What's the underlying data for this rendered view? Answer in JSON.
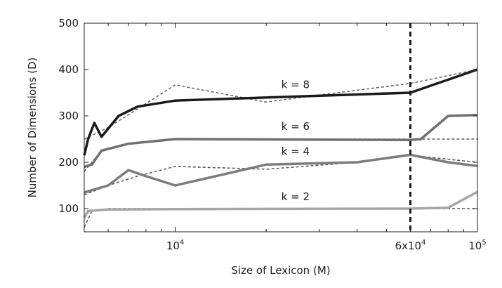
{
  "chart_data": {
    "type": "line",
    "xlabel": "Size of Lexicon (M)",
    "ylabel": "Number of Dimensions (D)",
    "x_scale": "log",
    "xlim": [
      5000,
      100000
    ],
    "ylim": [
      50,
      500
    ],
    "y_ticks": [
      100,
      200,
      300,
      400,
      500
    ],
    "x_tick_labels": [
      {
        "value": 10000,
        "base": "10",
        "exp": "4"
      },
      {
        "value": 60000,
        "base": "6x10",
        "exp": "4"
      },
      {
        "value": 100000,
        "base": "10",
        "exp": "5"
      }
    ],
    "x_minor_ticks": [
      6000,
      7000,
      8000,
      9000,
      20000,
      30000,
      40000,
      50000,
      70000,
      80000,
      90000
    ],
    "grid": false,
    "reference_line": {
      "x": 60000,
      "style": "dashed",
      "color": "#1a1a1a"
    },
    "series": [
      {
        "name": "k = 8",
        "color": "#1a1a1a",
        "width": 3.5,
        "solid": [
          [
            5000,
            215
          ],
          [
            5150,
            250
          ],
          [
            5400,
            285
          ],
          [
            5700,
            255
          ],
          [
            6500,
            300
          ],
          [
            7500,
            320
          ],
          [
            10000,
            333
          ],
          [
            60000,
            350
          ],
          [
            100000,
            400
          ]
        ],
        "dashed": [
          [
            5000,
            250
          ],
          [
            6000,
            275
          ],
          [
            7500,
            315
          ],
          [
            10000,
            367
          ],
          [
            20000,
            330
          ],
          [
            30000,
            345
          ],
          [
            60000,
            370
          ],
          [
            100000,
            400
          ]
        ]
      },
      {
        "name": "k = 6",
        "color": "#707070",
        "width": 3.5,
        "solid": [
          [
            5000,
            190
          ],
          [
            5300,
            195
          ],
          [
            5700,
            225
          ],
          [
            7000,
            240
          ],
          [
            10000,
            250
          ],
          [
            60000,
            248
          ],
          [
            65000,
            250
          ],
          [
            80000,
            300
          ],
          [
            100000,
            302
          ]
        ],
        "dashed": [
          [
            5000,
            180
          ],
          [
            5700,
            225
          ],
          [
            7000,
            240
          ],
          [
            10000,
            250
          ],
          [
            100000,
            250
          ]
        ]
      },
      {
        "name": "k = 4",
        "color": "#7c7c7c",
        "width": 3.5,
        "solid": [
          [
            5000,
            135
          ],
          [
            6000,
            150
          ],
          [
            7000,
            183
          ],
          [
            8000,
            170
          ],
          [
            10000,
            150
          ],
          [
            20000,
            195
          ],
          [
            40000,
            200
          ],
          [
            60000,
            216
          ],
          [
            80000,
            200
          ],
          [
            100000,
            192
          ]
        ],
        "dashed": [
          [
            5000,
            130
          ],
          [
            6000,
            150
          ],
          [
            7500,
            170
          ],
          [
            10000,
            191
          ],
          [
            20000,
            185
          ],
          [
            40000,
            200
          ],
          [
            60000,
            215
          ],
          [
            100000,
            200
          ]
        ]
      },
      {
        "name": "k = 2",
        "color": "#a6a6a6",
        "width": 3.5,
        "solid": [
          [
            5000,
            80
          ],
          [
            5150,
            95
          ],
          [
            6000,
            98
          ],
          [
            10000,
            99
          ],
          [
            60000,
            100
          ],
          [
            80000,
            102
          ],
          [
            100000,
            136
          ]
        ],
        "dashed": [
          [
            5000,
            60
          ],
          [
            5300,
            95
          ],
          [
            6000,
            100
          ],
          [
            10000,
            100
          ],
          [
            100000,
            100
          ]
        ]
      }
    ],
    "series_labels": [
      {
        "text": "k = 8",
        "x": 25000,
        "y": 360
      },
      {
        "text": "k = 6",
        "x": 25000,
        "y": 270
      },
      {
        "text": "k = 4",
        "x": 25000,
        "y": 216
      },
      {
        "text": "k = 2",
        "x": 25000,
        "y": 118
      }
    ]
  }
}
